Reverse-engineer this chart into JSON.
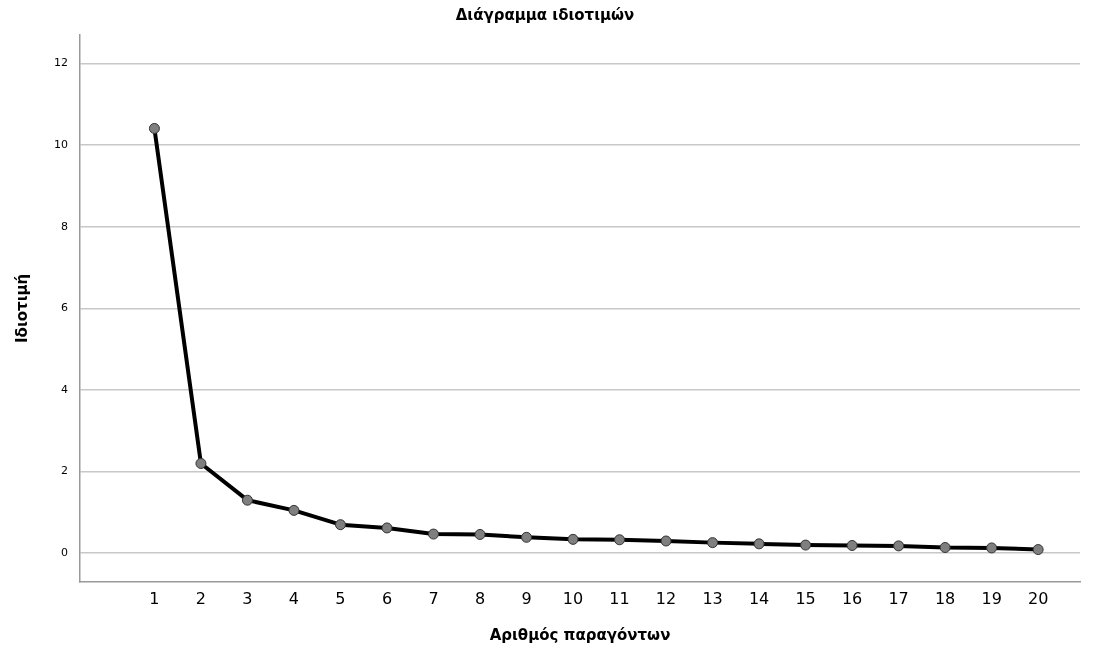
{
  "chart_data": {
    "type": "line",
    "title": "Διάγραμμα ιδιοτιμών",
    "xlabel": "Αριθμός παραγόντων",
    "ylabel": "Ιδιοτιμή",
    "x": [
      1,
      2,
      3,
      4,
      5,
      6,
      7,
      8,
      9,
      10,
      11,
      12,
      13,
      14,
      15,
      16,
      17,
      18,
      19,
      20
    ],
    "series": [
      {
        "color": "#000000",
        "values": [
          10.41,
          2.2,
          1.3,
          1.05,
          0.7,
          0.62,
          0.47,
          0.46,
          0.39,
          0.34,
          0.33,
          0.3,
          0.26,
          0.23,
          0.2,
          0.19,
          0.18,
          0.14,
          0.13,
          0.09
        ]
      }
    ],
    "xlim": [
      -0.6,
      20.9
    ],
    "xticks": [
      1,
      2,
      3,
      4,
      5,
      6,
      7,
      8,
      9,
      10,
      11,
      12,
      13,
      14,
      15,
      16,
      17,
      18,
      19,
      20
    ],
    "ylim": [
      -0.7,
      12.7
    ],
    "yticks": [
      0,
      2,
      4,
      6,
      8,
      10,
      12
    ],
    "grid": "y",
    "legend": false,
    "marker": "circle",
    "line_style": "solid"
  }
}
